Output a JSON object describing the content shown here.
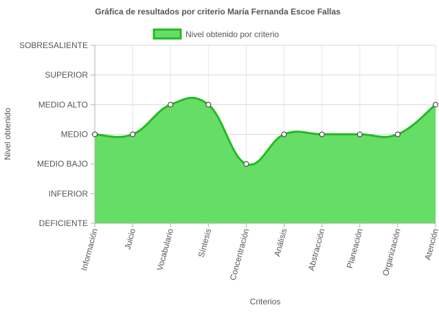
{
  "chart_data": {
    "type": "area",
    "title": "Gráfica de resultados por criterio María Fernanda Escoe Fallas",
    "xlabel": "Criterios",
    "ylabel": "Nivel obtenido",
    "legend": {
      "label": "Nivel obtenido por criterio",
      "placement": "top-center"
    },
    "y_levels": [
      "DEFICIENTE",
      "INFERIOR",
      "MEDIO BAJO",
      "MEDIO",
      "MEDIO ALTO",
      "SUPERIOR",
      "SOBRESALIENTE"
    ],
    "ylim": [
      0,
      6
    ],
    "categories": [
      "Información",
      "Juicio",
      "Vocabulario",
      "Síntesis",
      "Concentración",
      "Análisis",
      "Abstracción",
      "Planeación",
      "Organización",
      "Atención"
    ],
    "series": [
      {
        "name": "Nivel obtenido por criterio",
        "values": [
          3,
          3,
          4,
          4,
          2,
          3,
          3,
          3,
          3,
          4
        ],
        "fill_color": "#66dd66",
        "line_color": "#22bb22"
      }
    ],
    "grid": true
  }
}
